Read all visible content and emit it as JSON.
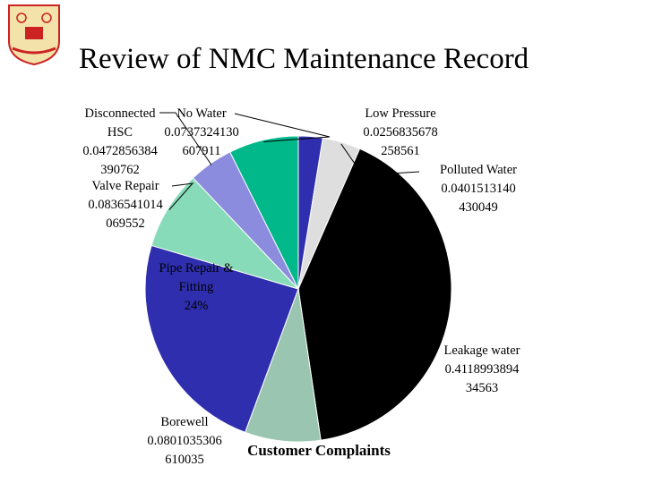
{
  "slide": {
    "title": "Review of NMC Maintenance Record"
  },
  "chart_data": {
    "type": "pie",
    "title": "",
    "category_label": "Customer Complaints",
    "slices": [
      {
        "name": "Low Pressure",
        "value": 0.0256835678258561,
        "color": "#2e2eae",
        "label_lines": [
          "Low Pressure",
          "0.0256835678",
          "258561"
        ]
      },
      {
        "name": "Polluted Water",
        "value": 0.0401513140430049,
        "color": "#dedede",
        "label_lines": [
          "Polluted Water",
          "0.0401513140",
          "430049"
        ]
      },
      {
        "name": "Leakage water",
        "value": 0.411899389434563,
        "color": "#000000",
        "label_lines": [
          "Leakage water",
          "0.4118993894",
          "34563"
        ]
      },
      {
        "name": "Borewell",
        "value": 0.0801035306610035,
        "color": "#9ac5b0",
        "label_lines": [
          "Borewell",
          "0.0801035306",
          "610035"
        ]
      },
      {
        "name": "Pipe Repair & Fitting",
        "value": 0.24,
        "color": "#2e2eae",
        "label_lines": [
          "Pipe Repair &",
          "Fitting",
          "24%"
        ]
      },
      {
        "name": "Valve Repair",
        "value": 0.0836541014069552,
        "color": "#88dbb8",
        "label_lines": [
          "Valve Repair",
          "0.0836541014",
          "069552"
        ]
      },
      {
        "name": "Disconnected HSC",
        "value": 0.0472856384390762,
        "color": "#8c8cde",
        "label_lines": [
          "Disconnected",
          "HSC",
          "0.0472856384",
          "390762"
        ]
      },
      {
        "name": "No Water",
        "value": 0.0737324130607911,
        "color": "#00b88a",
        "label_lines": [
          "No Water",
          "0.0737324130",
          "607911"
        ]
      }
    ]
  }
}
